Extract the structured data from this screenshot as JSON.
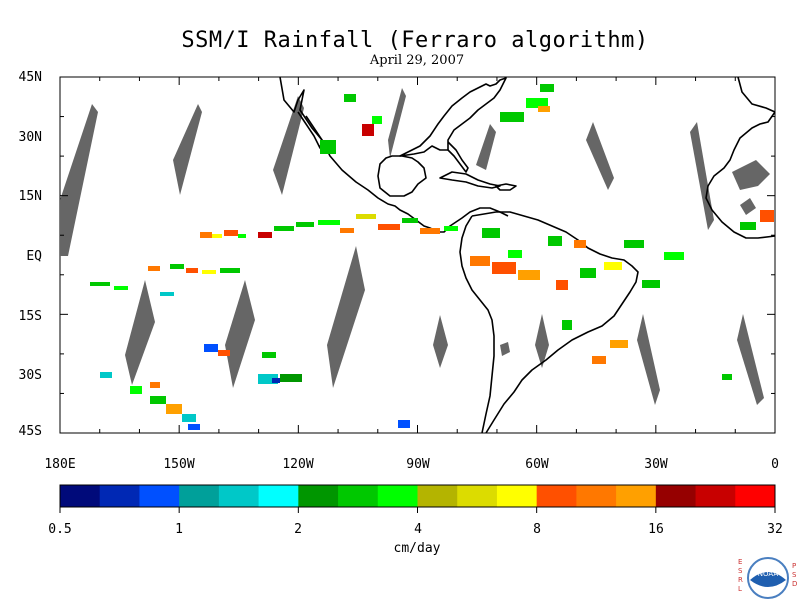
{
  "title": "SSM/I Rainfall (Ferraro algorithm)",
  "subtitle": "April 29, 2007",
  "lat_labels": [
    "45N",
    "30N",
    "15N",
    "EQ",
    "15S",
    "30S",
    "45S"
  ],
  "lon_labels": [
    "180E",
    "150W",
    "120W",
    "90W",
    "60W",
    "30W",
    "0"
  ],
  "colorbar": {
    "colors": [
      "#000a7a",
      "#0028b4",
      "#0050ff",
      "#00a09a",
      "#00c8c8",
      "#00ffff",
      "#009600",
      "#00c800",
      "#00ff00",
      "#b4b400",
      "#dcdc00",
      "#ffff00",
      "#ff5000",
      "#ff7800",
      "#ffa000",
      "#960000",
      "#c80000",
      "#ff0000"
    ],
    "tick_labels": [
      "0.5",
      "1",
      "2",
      "4",
      "8",
      "16",
      "32"
    ],
    "units": "cm/day"
  },
  "logo": {
    "left_letters": "ESRL",
    "right_letters": "PSD",
    "emblem_text": "NOAA"
  }
}
